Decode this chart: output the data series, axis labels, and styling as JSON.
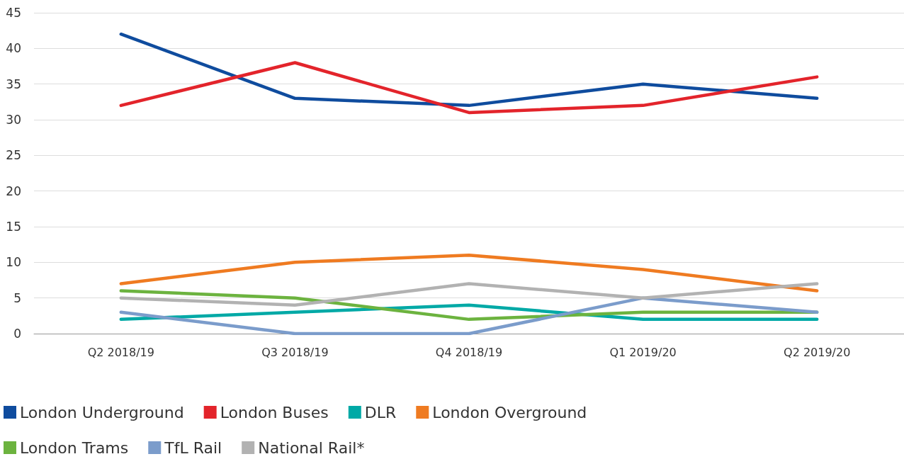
{
  "chart_data": {
    "type": "line",
    "categories": [
      "Q2 2018/19",
      "Q3 2018/19",
      "Q4 2018/19",
      "Q1 2019/20",
      "Q2 2019/20"
    ],
    "ylim": [
      0,
      45
    ],
    "yticks": [
      0,
      5,
      10,
      15,
      20,
      25,
      30,
      35,
      40,
      45
    ],
    "grid": "y",
    "legend": "bottom",
    "marker": "none",
    "line_style": "solid",
    "series": [
      {
        "name": "London Underground",
        "color": "#0f4c9e",
        "values": [
          42,
          33,
          32,
          35,
          33
        ]
      },
      {
        "name": "London Buses",
        "color": "#e3242b",
        "values": [
          32,
          38,
          31,
          32,
          36
        ]
      },
      {
        "name": "DLR",
        "color": "#00a9a6",
        "values": [
          2,
          3,
          4,
          2,
          2
        ]
      },
      {
        "name": "London Overground",
        "color": "#ef7b21",
        "values": [
          7,
          10,
          11,
          9,
          6
        ]
      },
      {
        "name": "London Trams",
        "color": "#6cb33f",
        "values": [
          6,
          5,
          2,
          3,
          3
        ]
      },
      {
        "name": "TfL Rail",
        "color": "#7b9ccb",
        "values": [
          3,
          0,
          0,
          5,
          3
        ]
      },
      {
        "name": "National Rail*",
        "color": "#b2b2b2",
        "values": [
          5,
          4,
          7,
          5,
          7
        ]
      }
    ]
  }
}
